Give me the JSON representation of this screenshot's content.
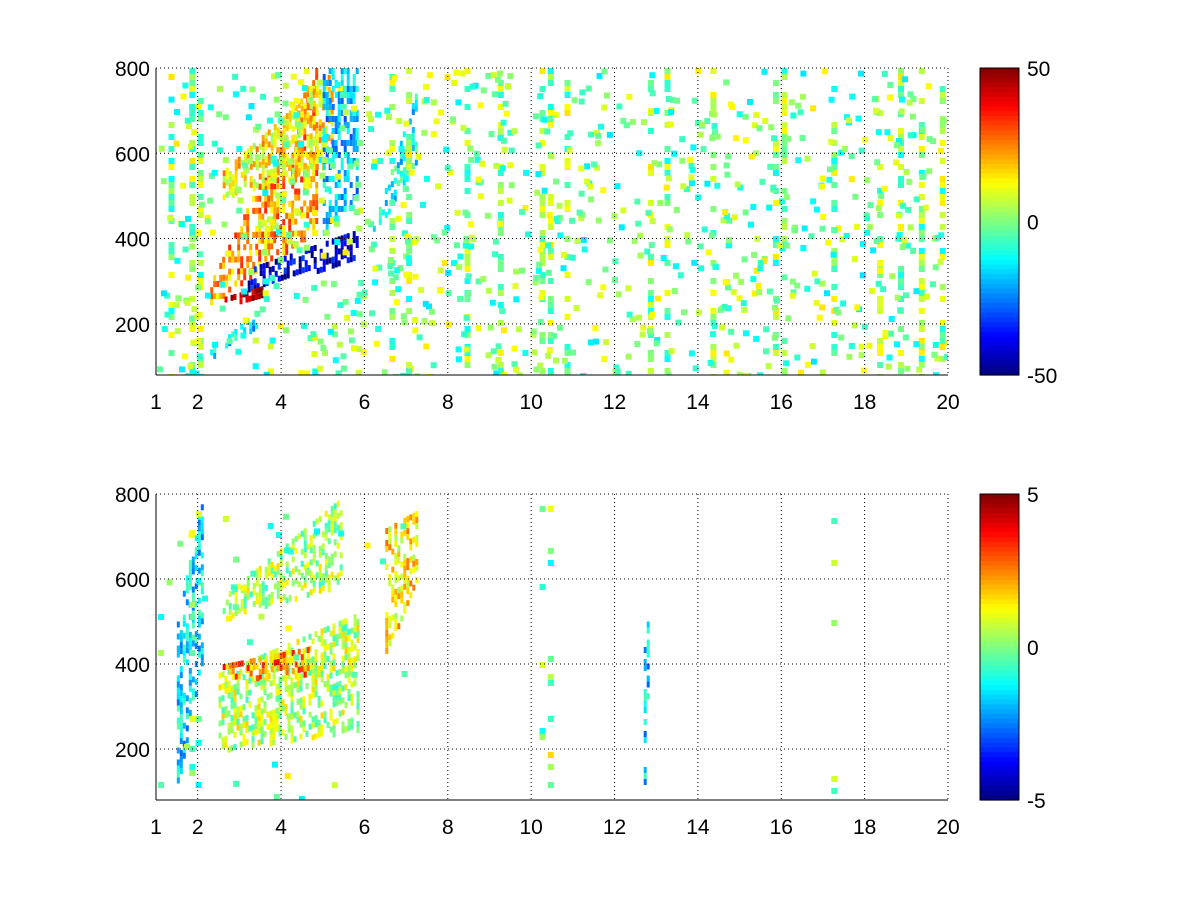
{
  "colormap": "jet",
  "chart_data": [
    {
      "type": "heatmap",
      "title": "",
      "xlabel": "",
      "ylabel": "",
      "xlim": [
        1,
        20
      ],
      "ylim": [
        80,
        800
      ],
      "xticks": [
        "1",
        "2",
        "4",
        "6",
        "8",
        "10",
        "12",
        "14",
        "16",
        "18",
        "20"
      ],
      "yticks": [
        "200",
        "400",
        "600",
        "800"
      ],
      "grid": true,
      "colorbar": {
        "range": [
          -50,
          50
        ],
        "ticks": [
          "-50",
          "0",
          "50"
        ]
      },
      "features": [
        {
          "shape": "band",
          "x": [
            2.3,
            4.8
          ],
          "y_start": [
            250,
            300
          ],
          "y_end": [
            420,
            800
          ],
          "value": 22
        },
        {
          "shape": "band",
          "x": [
            2.6,
            5.2
          ],
          "y_start": [
            500,
            560
          ],
          "y_end": [
            580,
            790
          ],
          "value": 14
        },
        {
          "shape": "band",
          "x": [
            3.2,
            5.8
          ],
          "y_start": [
            280,
            330
          ],
          "y_end": [
            360,
            420
          ],
          "value": -42
        },
        {
          "shape": "band",
          "x": [
            5.0,
            5.8
          ],
          "y_start": [
            420,
            800
          ],
          "y_end": [
            500,
            800
          ],
          "value": -18
        },
        {
          "shape": "band",
          "x": [
            6.2,
            7.2
          ],
          "y_start": [
            420,
            430
          ],
          "y_end": [
            560,
            740
          ],
          "value": -12
        },
        {
          "shape": "band",
          "x": [
            2.3,
            3.4
          ],
          "y_start": [
            120,
            140
          ],
          "y_end": [
            200,
            230
          ],
          "value": -14
        },
        {
          "shape": "band",
          "x": [
            2.5,
            3.6
          ],
          "y_start": [
            250,
            260
          ],
          "y_end": [
            270,
            290
          ],
          "value": 46
        }
      ],
      "sparse_columns": [
        1.3,
        1.8,
        2.0,
        6.6,
        7.0,
        8.4,
        9.2,
        10.2,
        10.4,
        10.8,
        12.8,
        13.2,
        14.3,
        15.8,
        16.0,
        17.2,
        18.3,
        18.8,
        19.3,
        19.8
      ]
    },
    {
      "type": "heatmap",
      "title": "",
      "xlabel": "",
      "ylabel": "",
      "xlim": [
        1,
        20
      ],
      "ylim": [
        80,
        800
      ],
      "xticks": [
        "1",
        "2",
        "4",
        "6",
        "8",
        "10",
        "12",
        "14",
        "16",
        "18",
        "20"
      ],
      "yticks": [
        "200",
        "400",
        "600",
        "800"
      ],
      "grid": true,
      "colorbar": {
        "range": [
          -5,
          5
        ],
        "ticks": [
          "-5",
          "0",
          "5"
        ]
      },
      "features": [
        {
          "shape": "band",
          "x": [
            2.5,
            5.8
          ],
          "y_start": [
            200,
            380
          ],
          "y_end": [
            250,
            520
          ],
          "value": 0.5
        },
        {
          "shape": "band",
          "x": [
            2.6,
            5.4
          ],
          "y_start": [
            510,
            560
          ],
          "y_end": [
            590,
            790
          ],
          "value": 0.4
        },
        {
          "shape": "band",
          "x": [
            2.6,
            4.6
          ],
          "y_start": [
            360,
            400
          ],
          "y_end": [
            380,
            440
          ],
          "value": 2.5
        },
        {
          "shape": "band",
          "x": [
            6.5,
            7.2
          ],
          "y_start": [
            420,
            720
          ],
          "y_end": [
            600,
            760
          ],
          "value": 1.5
        },
        {
          "shape": "band",
          "x": [
            1.5,
            2.1
          ],
          "y_start": [
            120,
            500
          ],
          "y_end": [
            400,
            790
          ],
          "value": -1.5
        },
        {
          "shape": "band",
          "x": [
            12.7,
            12.8
          ],
          "y_start": [
            80,
            440
          ],
          "y_end": [
            290,
            500
          ],
          "value": -1.8
        }
      ],
      "sparse_columns": [
        1.05,
        1.8,
        1.95,
        10.2,
        10.4,
        17.2
      ]
    }
  ]
}
